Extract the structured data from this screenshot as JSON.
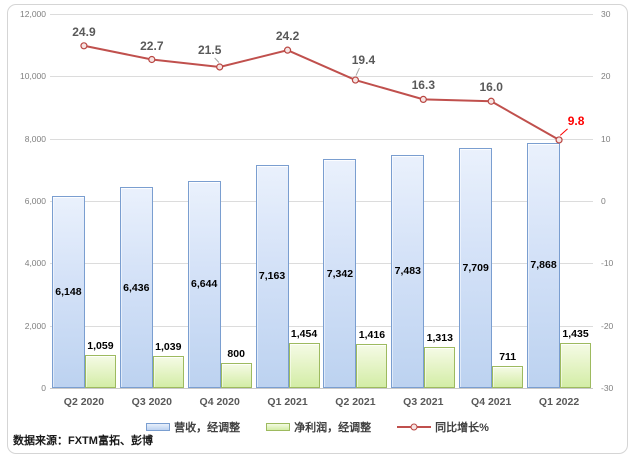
{
  "chart_data": {
    "type": "combo",
    "categories": [
      "Q2 2020",
      "Q3 2020",
      "Q4 2020",
      "Q1 2021",
      "Q2 2021",
      "Q3 2021",
      "Q4 2021",
      "Q1 2022"
    ],
    "series": [
      {
        "name": "营收，经调整",
        "type": "bar",
        "axis": "left",
        "values": [
          6148,
          6436,
          6644,
          7163,
          7342,
          7483,
          7709,
          7868
        ],
        "labels": [
          "6,148",
          "6,436",
          "6,644",
          "7,163",
          "7,342",
          "7,483",
          "7,709",
          "7,868"
        ]
      },
      {
        "name": "净利润，经调整",
        "type": "bar",
        "axis": "left",
        "values": [
          1059,
          1039,
          800,
          1454,
          1416,
          1313,
          711,
          1435
        ],
        "labels": [
          "1,059",
          "1,039",
          "800",
          "1,454",
          "1,416",
          "1,313",
          "711",
          "1,435"
        ]
      },
      {
        "name": "同比增长%",
        "type": "line",
        "axis": "right",
        "values": [
          24.9,
          22.7,
          21.5,
          24.2,
          19.4,
          16.3,
          16.0,
          9.8
        ],
        "labels": [
          "24.9",
          "22.7",
          "21.5",
          "24.2",
          "19.4",
          "16.3",
          "16.0",
          "9.8"
        ]
      }
    ],
    "left_axis": {
      "min": 0,
      "max": 12000,
      "step": 2000,
      "ticks": [
        "12,000",
        "10,000",
        "8,000",
        "6,000",
        "4,000",
        "2,000",
        "0"
      ]
    },
    "right_axis": {
      "min": -30,
      "max": 30,
      "step": 10,
      "ticks": [
        "30",
        "20",
        "10",
        "0",
        "-10",
        "-20",
        "-30"
      ]
    },
    "grid": true,
    "legend_position": "bottom",
    "layout_hints": {
      "label_adjust": {
        "2": {
          "dx": -10,
          "dy": -17,
          "leader": true
        },
        "4": {
          "dx": 8,
          "dy": -20,
          "leader": true
        },
        "7": {
          "dx": 17,
          "dy": -19,
          "leader": true,
          "color": "#ff0000"
        }
      }
    }
  },
  "legend": {
    "revenue": "营收，经调整",
    "profit": "净利润，经调整",
    "growth": "同比增长%"
  },
  "source_note": "数据来源：FXTM富拓、彭博",
  "colors": {
    "bar_revenue_border": "#7a9ed0",
    "bar_revenue_fill": "#cdddf5",
    "bar_profit_border": "#9dba5f",
    "bar_profit_fill": "#ddf0b6",
    "growth_line": "#c0504d",
    "growth_last_label": "#ff0000",
    "line_label": "#595959",
    "axis_text": "#7f7f7f",
    "gridline": "#dcdcdc"
  }
}
